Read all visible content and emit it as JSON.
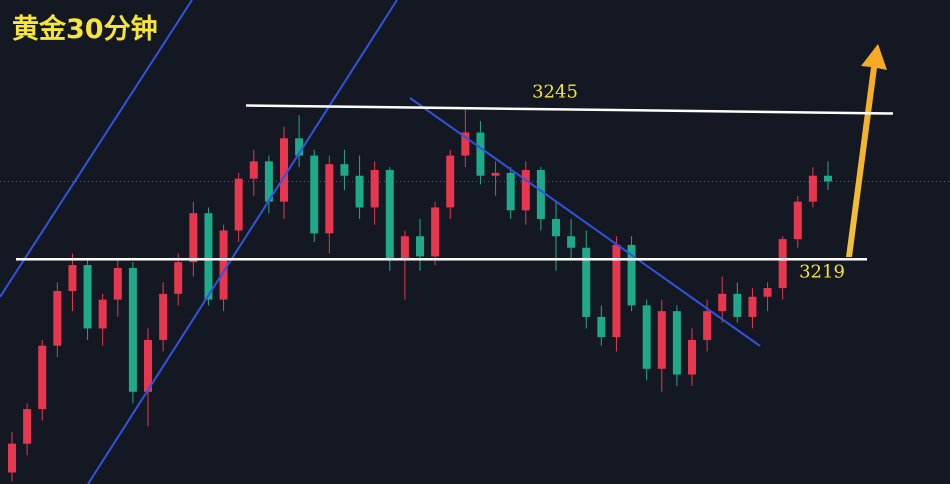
{
  "chart_data": {
    "type": "candlestick",
    "title": "黄金30分钟",
    "ylim": [
      3180,
      3264
    ],
    "levels": [
      3245,
      3219
    ],
    "up_color": "#e8364e",
    "down_color": "#1fa98b",
    "level_color": "#ffffff",
    "open": [
      3182,
      3187,
      3193,
      3204,
      3213.5,
      3218,
      3207,
      3212,
      3217.5,
      3196,
      3205,
      3213,
      3218.5,
      3227,
      3212,
      3224,
      3233,
      3236,
      3229,
      3240,
      3237,
      3223.5,
      3235.5,
      3233.5,
      3228,
      3234.5,
      3219,
      3223,
      3219.5,
      3228,
      3237,
      3241,
      3233.5,
      3234,
      3227.5,
      3234.5,
      3226,
      3223,
      3221,
      3209,
      3205.5,
      3221.5,
      3211,
      3200,
      3210,
      3199,
      3205,
      3210,
      3213,
      3209,
      3212.5,
      3214,
      3222.5,
      3229,
      3233.5
    ],
    "high": [
      3189,
      3194,
      3205,
      3215,
      3220,
      3219,
      3213,
      3219,
      3218.5,
      3207,
      3215,
      3220,
      3229,
      3228,
      3225,
      3234,
      3238,
      3237,
      3242,
      3244,
      3238,
      3237,
      3238,
      3237,
      3236,
      3235,
      3224,
      3226,
      3229,
      3238,
      3245,
      3243,
      3236,
      3235,
      3236,
      3235,
      3229,
      3226,
      3224,
      3211,
      3223,
      3223,
      3212,
      3212,
      3211,
      3207,
      3212,
      3216,
      3215,
      3214,
      3215,
      3223,
      3230,
      3235,
      3236
    ],
    "low": [
      3180.5,
      3185,
      3191,
      3202,
      3210,
      3205,
      3204,
      3209,
      3194,
      3190,
      3203,
      3211,
      3216,
      3211,
      3210,
      3222,
      3230,
      3227,
      3226,
      3235,
      3222,
      3220,
      3231,
      3226,
      3225,
      3217,
      3212,
      3217,
      3218,
      3226,
      3235,
      3232,
      3230,
      3226,
      3225,
      3224,
      3217,
      3219,
      3207,
      3204,
      3203,
      3210,
      3198,
      3196,
      3197,
      3197,
      3203,
      3208,
      3208,
      3207,
      3210,
      3212,
      3221,
      3228,
      3231
    ],
    "close": [
      3187,
      3193,
      3204,
      3213.5,
      3218,
      3207,
      3212,
      3217.5,
      3196,
      3205,
      3213,
      3218.5,
      3227,
      3212,
      3224,
      3233,
      3236,
      3229,
      3240,
      3237,
      3223.5,
      3235.5,
      3233.5,
      3228,
      3234.5,
      3219,
      3223,
      3219.5,
      3228,
      3237,
      3241,
      3233.5,
      3234,
      3227.5,
      3234.5,
      3226,
      3223,
      3221,
      3209,
      3205.5,
      3221.5,
      3211,
      3200,
      3210,
      3199,
      3205,
      3210,
      3213,
      3209,
      3212.5,
      3214,
      3222.5,
      3229,
      3233.5,
      3232.5
    ]
  }
}
